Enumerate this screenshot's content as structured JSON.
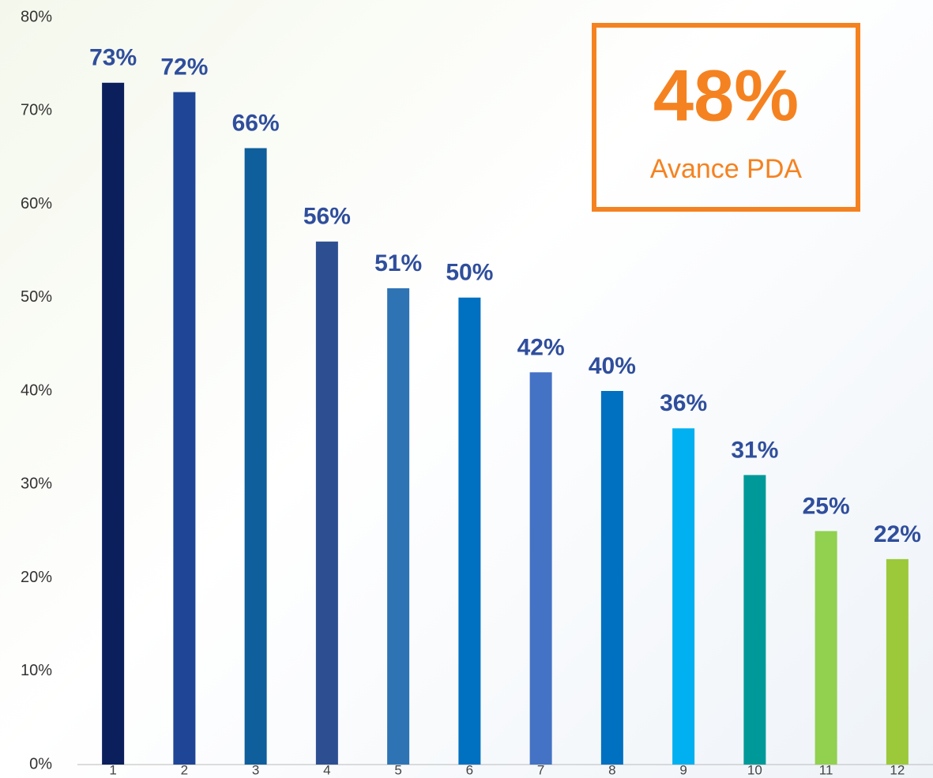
{
  "chart_data": {
    "type": "bar",
    "categories": [
      "1",
      "2",
      "3",
      "4",
      "5",
      "6",
      "7",
      "8",
      "9",
      "10",
      "11",
      "12"
    ],
    "values": [
      73,
      72,
      66,
      56,
      51,
      50,
      42,
      40,
      36,
      31,
      25,
      22
    ],
    "value_labels": [
      "73%",
      "72%",
      "66%",
      "56%",
      "51%",
      "50%",
      "42%",
      "40%",
      "36%",
      "31%",
      "25%",
      "22%"
    ],
    "colors": [
      "#0a1f5c",
      "#1f4696",
      "#0e5f9b",
      "#2d4f92",
      "#2e74b5",
      "#0070c0",
      "#4472c4",
      "#0070c0",
      "#00b0f0",
      "#009999",
      "#92d050",
      "#9bc93a"
    ],
    "ylim": [
      0,
      80
    ],
    "yticks": [
      {
        "value": 0,
        "label": "0%"
      },
      {
        "value": 10,
        "label": "10%"
      },
      {
        "value": 20,
        "label": "20%"
      },
      {
        "value": 30,
        "label": "30%"
      },
      {
        "value": 40,
        "label": "40%"
      },
      {
        "value": 50,
        "label": "50%"
      },
      {
        "value": 60,
        "label": "60%"
      },
      {
        "value": 70,
        "label": "70%"
      },
      {
        "value": 80,
        "label": "80%"
      }
    ],
    "grid": false,
    "kpi": {
      "value": 48,
      "label": "48%",
      "caption": "Avance PDA"
    }
  }
}
